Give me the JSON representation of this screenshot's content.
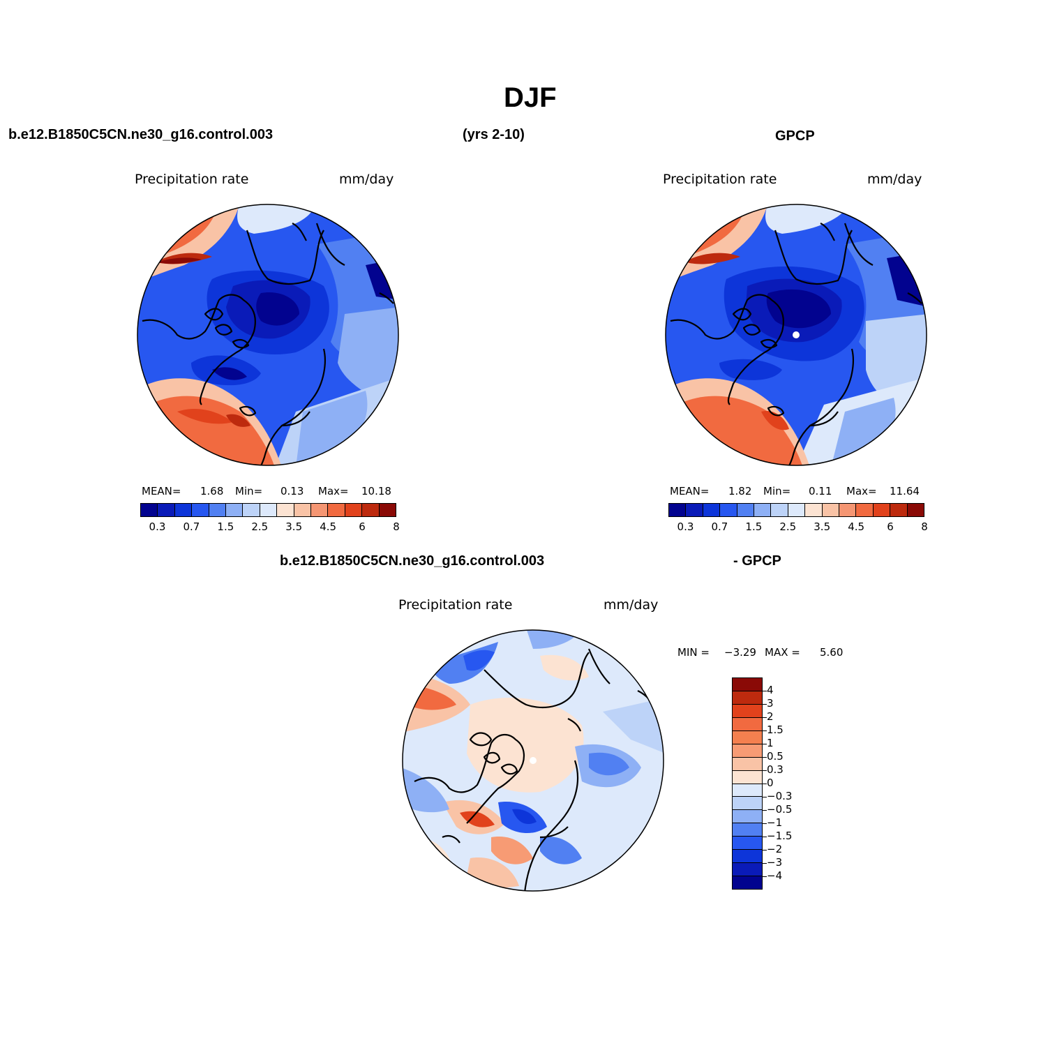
{
  "header": {
    "title": "DJF",
    "case_name": "b.e12.B1850C5CN.ne30_g16.control.003",
    "years": "(yrs 2-10)",
    "obs_name": "GPCP"
  },
  "panels": {
    "model": {
      "variable": "Precipitation rate",
      "units": "mm/day",
      "mean_label": "MEAN=",
      "mean": "1.68",
      "min_label": "Min=",
      "min": "0.13",
      "max_label": "Max=",
      "max": "10.18"
    },
    "obs": {
      "variable": "Precipitation rate",
      "units": "mm/day",
      "mean_label": "MEAN=",
      "mean": "1.82",
      "min_label": "Min=",
      "min": "0.11",
      "max_label": "Max=",
      "max": "11.64"
    },
    "diff": {
      "case_name": "b.e12.B1850C5CN.ne30_g16.control.003",
      "minus_obs": "- GPCP",
      "variable": "Precipitation rate",
      "units": "mm/day",
      "min_label": "MIN =",
      "min": "−3.29",
      "max_label": "MAX =",
      "max": "5.60"
    }
  },
  "colorbars": {
    "precip": {
      "levels": [
        "0.3",
        "0.7",
        "1.5",
        "2.5",
        "3.5",
        "4.5",
        "6",
        "8"
      ],
      "colors": [
        "#02038f",
        "#0a1bb8",
        "#0d35d9",
        "#2757f0",
        "#5180f2",
        "#8eb0f5",
        "#bdd3f8",
        "#dde9fb",
        "#fce3d2",
        "#f9c3a6",
        "#f59673",
        "#f16a40",
        "#e1421c",
        "#bd2a0e",
        "#8a0a06"
      ]
    },
    "diff": {
      "levels": [
        "4",
        "3",
        "2",
        "1.5",
        "1",
        "0.5",
        "0.3",
        "0",
        "−0.3",
        "−0.5",
        "−1",
        "−1.5",
        "−2",
        "−3",
        "−4"
      ],
      "colors": [
        "#8a0a06",
        "#bd2a0e",
        "#e1421c",
        "#f16a40",
        "#f4804f",
        "#f79b74",
        "#f9c3a6",
        "#fce3d2",
        "#dde9fb",
        "#bdd3f8",
        "#8eb0f5",
        "#5180f2",
        "#2757f0",
        "#0d35d9",
        "#0a1bb8",
        "#02038f"
      ]
    }
  }
}
